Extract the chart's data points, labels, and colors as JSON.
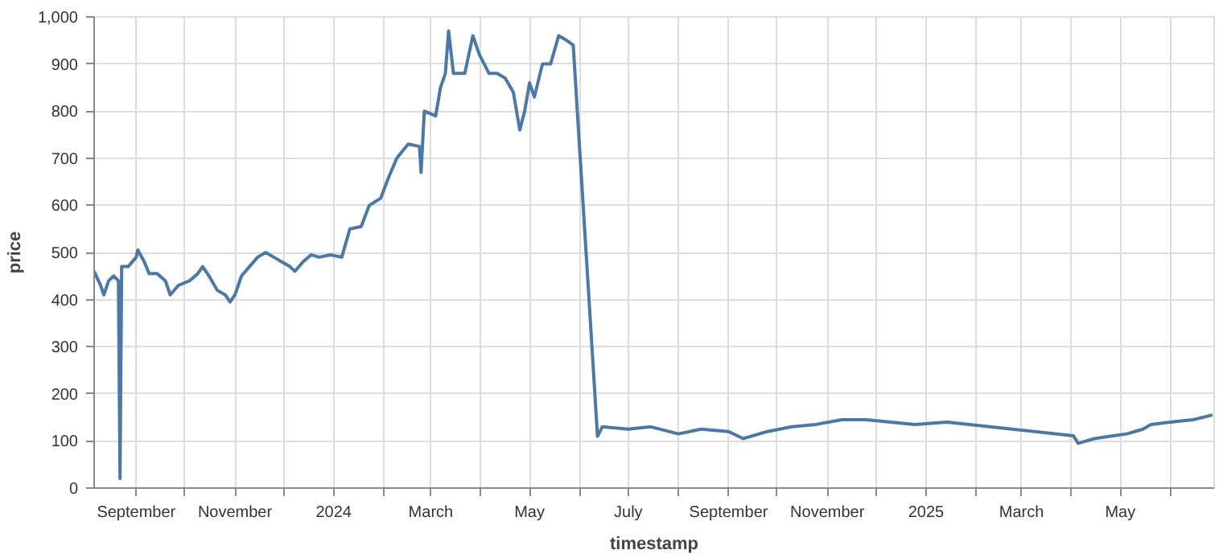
{
  "chart_data": {
    "type": "line",
    "xlabel": "timestamp",
    "ylabel": "price",
    "x": [
      "2023-08-06",
      "2023-08-10",
      "2023-08-12",
      "2023-08-15",
      "2023-08-18",
      "2023-08-21",
      "2023-08-22",
      "2023-08-23",
      "2023-08-24",
      "2023-08-27",
      "2023-09-01",
      "2023-09-02",
      "2023-09-06",
      "2023-09-09",
      "2023-09-14",
      "2023-09-19",
      "2023-09-22",
      "2023-09-27",
      "2023-10-04",
      "2023-10-09",
      "2023-10-12",
      "2023-10-16",
      "2023-10-21",
      "2023-10-26",
      "2023-10-29",
      "2023-11-01",
      "2023-11-05",
      "2023-11-10",
      "2023-11-15",
      "2023-11-20",
      "2023-11-25",
      "2023-11-30",
      "2023-12-05",
      "2023-12-08",
      "2023-12-13",
      "2023-12-18",
      "2023-12-23",
      "2023-12-30",
      "2024-01-06",
      "2024-01-11",
      "2024-01-18",
      "2024-01-23",
      "2024-01-30",
      "2024-02-04",
      "2024-02-09",
      "2024-02-16",
      "2024-02-23",
      "2024-02-24",
      "2024-02-26",
      "2024-03-04",
      "2024-03-07",
      "2024-03-10",
      "2024-03-12",
      "2024-03-15",
      "2024-03-22",
      "2024-03-27",
      "2024-03-31",
      "2024-04-06",
      "2024-04-11",
      "2024-04-16",
      "2024-04-21",
      "2024-04-25",
      "2024-04-28",
      "2024-05-01",
      "2024-05-04",
      "2024-05-09",
      "2024-05-14",
      "2024-05-19",
      "2024-05-24",
      "2024-05-28",
      "2024-06-12",
      "2024-06-15",
      "2024-07-01",
      "2024-07-15",
      "2024-08-01",
      "2024-08-15",
      "2024-09-01",
      "2024-09-10",
      "2024-09-25",
      "2024-10-10",
      "2024-10-25",
      "2024-11-10",
      "2024-11-25",
      "2024-12-10",
      "2024-12-25",
      "2025-01-14",
      "2025-04-02",
      "2025-04-05",
      "2025-04-15",
      "2025-04-25",
      "2025-05-05",
      "2025-05-15",
      "2025-05-20",
      "2025-06-01",
      "2025-06-15",
      "2025-06-27"
    ],
    "series": [
      {
        "color": "#4c78a8",
        "values": [
          460,
          430,
          410,
          440,
          450,
          440,
          20,
          470,
          470,
          470,
          490,
          505,
          480,
          455,
          455,
          440,
          410,
          430,
          440,
          455,
          470,
          450,
          420,
          410,
          395,
          410,
          450,
          470,
          490,
          500,
          490,
          480,
          470,
          460,
          480,
          495,
          490,
          495,
          490,
          550,
          555,
          600,
          615,
          660,
          700,
          730,
          725,
          670,
          800,
          790,
          850,
          880,
          970,
          880,
          880,
          960,
          920,
          880,
          880,
          870,
          840,
          760,
          800,
          860,
          830,
          900,
          900,
          960,
          950,
          940,
          110,
          130,
          125,
          130,
          115,
          125,
          120,
          105,
          120,
          130,
          135,
          145,
          145,
          140,
          135,
          140,
          111,
          95,
          105,
          110,
          115,
          125,
          135,
          140,
          145,
          155
        ]
      }
    ],
    "xlim": [
      "2023-08-06",
      "2025-06-28"
    ],
    "xticks": [
      {
        "value": "2023-09-01",
        "label": "September"
      },
      {
        "value": "2023-10-01",
        "label": null
      },
      {
        "value": "2023-11-01",
        "label": "November"
      },
      {
        "value": "2023-12-01",
        "label": null
      },
      {
        "value": "2024-01-01",
        "label": "2024"
      },
      {
        "value": "2024-02-01",
        "label": null
      },
      {
        "value": "2024-03-01",
        "label": "March"
      },
      {
        "value": "2024-04-01",
        "label": null
      },
      {
        "value": "2024-05-01",
        "label": "May"
      },
      {
        "value": "2024-06-01",
        "label": null
      },
      {
        "value": "2024-07-01",
        "label": "July"
      },
      {
        "value": "2024-08-01",
        "label": null
      },
      {
        "value": "2024-09-01",
        "label": "September"
      },
      {
        "value": "2024-10-01",
        "label": null
      },
      {
        "value": "2024-11-01",
        "label": "November"
      },
      {
        "value": "2024-12-01",
        "label": null
      },
      {
        "value": "2025-01-01",
        "label": "2025"
      },
      {
        "value": "2025-02-01",
        "label": null
      },
      {
        "value": "2025-03-01",
        "label": "March"
      },
      {
        "value": "2025-04-01",
        "label": null
      },
      {
        "value": "2025-05-01",
        "label": "May"
      },
      {
        "value": "2025-06-01",
        "label": null
      }
    ],
    "ylim": [
      0,
      1000
    ],
    "yticks": [
      0,
      100,
      200,
      300,
      400,
      500,
      600,
      700,
      800,
      900,
      {
        "value": 1000,
        "label": "1,000"
      }
    ],
    "grid": true,
    "line_style": "solid"
  }
}
